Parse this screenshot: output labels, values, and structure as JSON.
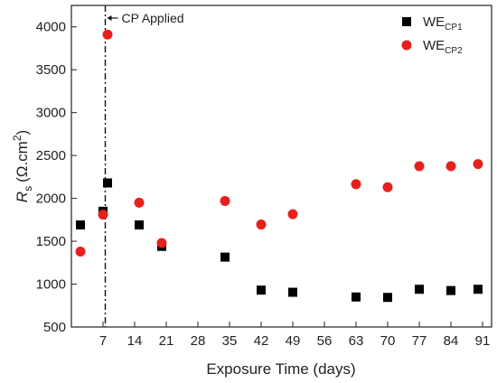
{
  "chart_data": {
    "type": "scatter",
    "xlabel": "Exposure Time (days)",
    "ylabel_main": "R",
    "ylabel_sub": "s",
    "ylabel_unit": "(Ω.cm",
    "ylabel_unit_sup": "2",
    "ylabel_unit_end": ")",
    "xlim": [
      0,
      93
    ],
    "ylim": [
      500,
      4250
    ],
    "x_ticks": [
      7,
      14,
      21,
      28,
      35,
      42,
      49,
      56,
      63,
      70,
      77,
      84,
      91
    ],
    "y_ticks": [
      500,
      1000,
      1500,
      2000,
      2500,
      3000,
      3500,
      4000
    ],
    "grid": false,
    "legend_position": "top-right",
    "series": [
      {
        "name": "WE",
        "name_sub": "CP1",
        "marker": "square",
        "color": "#000000",
        "points": [
          {
            "x": 2,
            "y": 1690
          },
          {
            "x": 7,
            "y": 1850
          },
          {
            "x": 8,
            "y": 2180
          },
          {
            "x": 15,
            "y": 1690
          },
          {
            "x": 20,
            "y": 1440
          },
          {
            "x": 34,
            "y": 1315
          },
          {
            "x": 42,
            "y": 930
          },
          {
            "x": 49,
            "y": 905
          },
          {
            "x": 63,
            "y": 850
          },
          {
            "x": 70,
            "y": 845
          },
          {
            "x": 77,
            "y": 940
          },
          {
            "x": 84,
            "y": 925
          },
          {
            "x": 90,
            "y": 940
          }
        ]
      },
      {
        "name": "WE",
        "name_sub": "CP2",
        "marker": "circle",
        "color": "#e8201c",
        "points": [
          {
            "x": 2,
            "y": 1380
          },
          {
            "x": 7,
            "y": 1810
          },
          {
            "x": 8,
            "y": 3910
          },
          {
            "x": 15,
            "y": 1950
          },
          {
            "x": 20,
            "y": 1480
          },
          {
            "x": 34,
            "y": 1970
          },
          {
            "x": 42,
            "y": 1695
          },
          {
            "x": 49,
            "y": 1815
          },
          {
            "x": 63,
            "y": 2165
          },
          {
            "x": 70,
            "y": 2130
          },
          {
            "x": 77,
            "y": 2375
          },
          {
            "x": 84,
            "y": 2375
          },
          {
            "x": 90,
            "y": 2400
          }
        ]
      }
    ],
    "annotations": [
      {
        "text": "CP Applied",
        "x": 7.5,
        "type": "vertical-line"
      }
    ]
  }
}
